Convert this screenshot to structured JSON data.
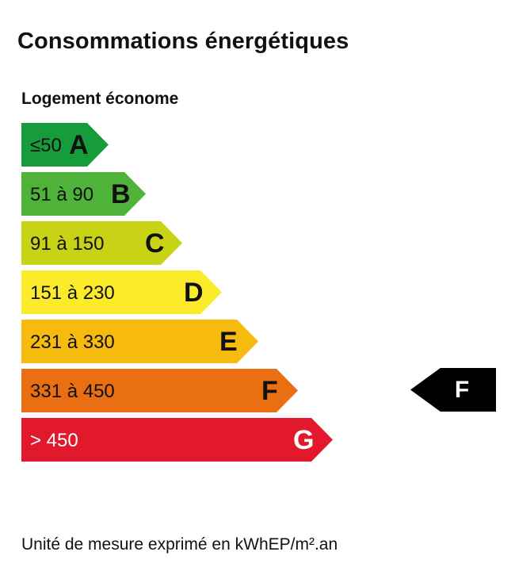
{
  "title": "Consommations énergétiques",
  "subtitle": "Logement économe",
  "classes": [
    {
      "range": "≤50",
      "letter": "A",
      "color": "#169c3b",
      "text_color": "#111111"
    },
    {
      "range": "51 à 90",
      "letter": "B",
      "color": "#4fb33a",
      "text_color": "#111111"
    },
    {
      "range": "91 à 150",
      "letter": "C",
      "color": "#c7d314",
      "text_color": "#111111"
    },
    {
      "range": "151 à 230",
      "letter": "D",
      "color": "#fbeb2b",
      "text_color": "#111111"
    },
    {
      "range": "231 à 330",
      "letter": "E",
      "color": "#f6bb0e",
      "text_color": "#111111"
    },
    {
      "range": "331 à 450",
      "letter": "F",
      "color": "#ea6f12",
      "text_color": "#111111"
    },
    {
      "range": "> 450",
      "letter": "G",
      "color": "#e2182c",
      "text_color": "#ffffff"
    }
  ],
  "rating": {
    "letter": "F",
    "color": "#000000"
  },
  "unit_note": "Unité de mesure exprimé en kWhEP/m².an"
}
